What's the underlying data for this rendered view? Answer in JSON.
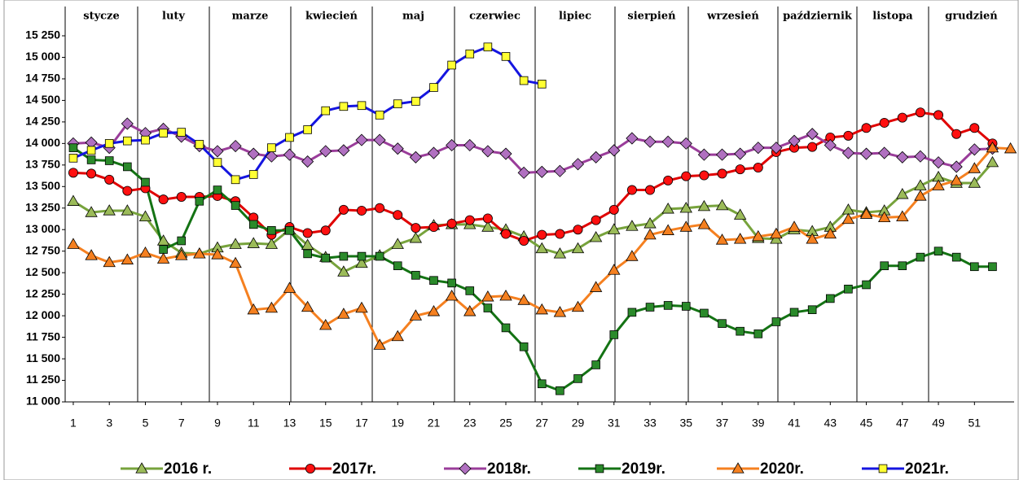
{
  "chart_data": {
    "type": "line",
    "months": [
      "stycze",
      "luty",
      "marze",
      "kwiecień",
      "maj",
      "czerwiec",
      "lipiec",
      "sierpień",
      "wrzesień",
      "październik",
      "listopa",
      "grudzień"
    ],
    "x": [
      1,
      2,
      3,
      4,
      5,
      6,
      7,
      8,
      9,
      10,
      11,
      12,
      13,
      14,
      15,
      16,
      17,
      18,
      19,
      20,
      21,
      22,
      23,
      24,
      25,
      26,
      27,
      28,
      29,
      30,
      31,
      32,
      33,
      34,
      35,
      36,
      37,
      38,
      39,
      40,
      41,
      42,
      43,
      44,
      45,
      46,
      47,
      48,
      49,
      50,
      51,
      52,
      53
    ],
    "xlim": [
      0.55,
      53.2
    ],
    "xticks": [
      1,
      3,
      5,
      7,
      9,
      11,
      13,
      15,
      17,
      19,
      21,
      23,
      25,
      27,
      29,
      31,
      33,
      35,
      37,
      39,
      41,
      43,
      45,
      47,
      49,
      51
    ],
    "ylim": [
      11000,
      15250
    ],
    "yticks": [
      {
        "value": 11000,
        "label": "11 000"
      },
      {
        "value": 11250,
        "label": "11 250"
      },
      {
        "value": 11500,
        "label": "11 500"
      },
      {
        "value": 11750,
        "label": "11 750"
      },
      {
        "value": 12000,
        "label": "12 000"
      },
      {
        "value": 12250,
        "label": "12 250"
      },
      {
        "value": 12500,
        "label": "12 500"
      },
      {
        "value": 12750,
        "label": "12 750"
      },
      {
        "value": 13000,
        "label": "13 000"
      },
      {
        "value": 13250,
        "label": "13 250"
      },
      {
        "value": 13500,
        "label": "13 500"
      },
      {
        "value": 13750,
        "label": "13 750"
      },
      {
        "value": 14000,
        "label": "14 000"
      },
      {
        "value": 14250,
        "label": "14 250"
      },
      {
        "value": 14500,
        "label": "14 500"
      },
      {
        "value": 14750,
        "label": "14 750"
      },
      {
        "value": 15000,
        "label": "15 000"
      },
      {
        "value": 15250,
        "label": "15 250"
      }
    ],
    "grid": false,
    "legend": "bottom",
    "series": [
      {
        "name": "2016 r.",
        "color": "#77a33c",
        "marker_fill": "#9bbb59",
        "marker": "triangle",
        "values": [
          13330,
          13200,
          13220,
          13220,
          13150,
          12870,
          12730,
          12720,
          12790,
          12830,
          12840,
          12830,
          13000,
          12820,
          12680,
          12510,
          12610,
          12700,
          12830,
          12900,
          13050,
          13060,
          13060,
          13030,
          13000,
          12920,
          12780,
          12720,
          12780,
          12910,
          13000,
          13040,
          13070,
          13240,
          13250,
          13270,
          13280,
          13170,
          12900,
          12890,
          13000,
          12980,
          13030,
          13230,
          13200,
          13220,
          13410,
          13510,
          13610,
          13540,
          13540,
          13780,
          null
        ]
      },
      {
        "name": "2017r.",
        "color": "#e00000",
        "marker_fill": "#ff1010",
        "marker": "circle",
        "values": [
          13660,
          13650,
          13580,
          13450,
          13480,
          13350,
          13380,
          13380,
          13390,
          13330,
          13140,
          12940,
          13030,
          12960,
          12990,
          13230,
          13220,
          13250,
          13170,
          13020,
          13030,
          13070,
          13110,
          13130,
          12950,
          12870,
          12940,
          12950,
          13000,
          13110,
          13230,
          13460,
          13460,
          13570,
          13620,
          13630,
          13650,
          13700,
          13720,
          13900,
          13950,
          13960,
          14070,
          14090,
          14180,
          14240,
          14300,
          14360,
          14330,
          14110,
          14180,
          14000,
          null
        ]
      },
      {
        "name": "2018r.",
        "color": "#9a3d9a",
        "marker_fill": "#b070c0",
        "marker": "diamond",
        "values": [
          14000,
          14010,
          13950,
          14230,
          14120,
          14170,
          14080,
          13970,
          13910,
          13970,
          13880,
          13850,
          13870,
          13790,
          13910,
          13920,
          14040,
          14040,
          13940,
          13840,
          13890,
          13980,
          13980,
          13910,
          13880,
          13660,
          13670,
          13680,
          13760,
          13840,
          13920,
          14060,
          14020,
          14020,
          14000,
          13870,
          13870,
          13880,
          13950,
          13950,
          14030,
          14110,
          13980,
          13890,
          13880,
          13890,
          13840,
          13850,
          13780,
          13730,
          13930,
          13940,
          null
        ]
      },
      {
        "name": "2019r.",
        "color": "#147314",
        "marker_fill": "#2a8a2a",
        "marker": "square",
        "values": [
          13950,
          13810,
          13800,
          13730,
          13550,
          12770,
          12870,
          13330,
          13460,
          13280,
          13060,
          12990,
          12990,
          12720,
          12670,
          12690,
          12690,
          12690,
          12580,
          12470,
          12410,
          12380,
          12290,
          12090,
          11860,
          11640,
          11210,
          11130,
          11270,
          11430,
          11780,
          12040,
          12100,
          12120,
          12110,
          12030,
          11910,
          11820,
          11790,
          11930,
          12040,
          12070,
          12200,
          12310,
          12360,
          12580,
          12580,
          12680,
          12750,
          12680,
          12570,
          12570,
          null
        ]
      },
      {
        "name": "2020r.",
        "color": "#f58020",
        "marker_fill": "#f58020",
        "marker": "triangle",
        "values": [
          12830,
          12700,
          12620,
          12650,
          12730,
          12660,
          12700,
          12720,
          12710,
          12610,
          12070,
          12090,
          12320,
          12100,
          11890,
          12020,
          12090,
          11660,
          11760,
          12000,
          12050,
          12230,
          12050,
          12220,
          12230,
          12180,
          12070,
          12040,
          12100,
          12330,
          12530,
          12690,
          12940,
          12990,
          13030,
          13060,
          12880,
          12890,
          12920,
          12950,
          13030,
          12890,
          12950,
          13120,
          13180,
          13140,
          13150,
          13390,
          13510,
          13570,
          13710,
          13950,
          13940
        ]
      },
      {
        "name": "2021r.",
        "color": "#1515e0",
        "marker_fill": "#ffff33",
        "marker": "square",
        "values": [
          13830,
          13920,
          14000,
          14030,
          14040,
          14120,
          14130,
          13990,
          13780,
          13580,
          13640,
          13950,
          14070,
          14160,
          14380,
          14430,
          14440,
          14330,
          14460,
          14490,
          14650,
          14910,
          15040,
          15120,
          15010,
          14730,
          14690,
          null,
          null,
          null,
          null,
          null,
          null,
          null,
          null,
          null,
          null,
          null,
          null,
          null,
          null,
          null,
          null,
          null,
          null,
          null,
          null,
          null,
          null,
          null,
          null,
          null,
          null
        ]
      }
    ]
  }
}
